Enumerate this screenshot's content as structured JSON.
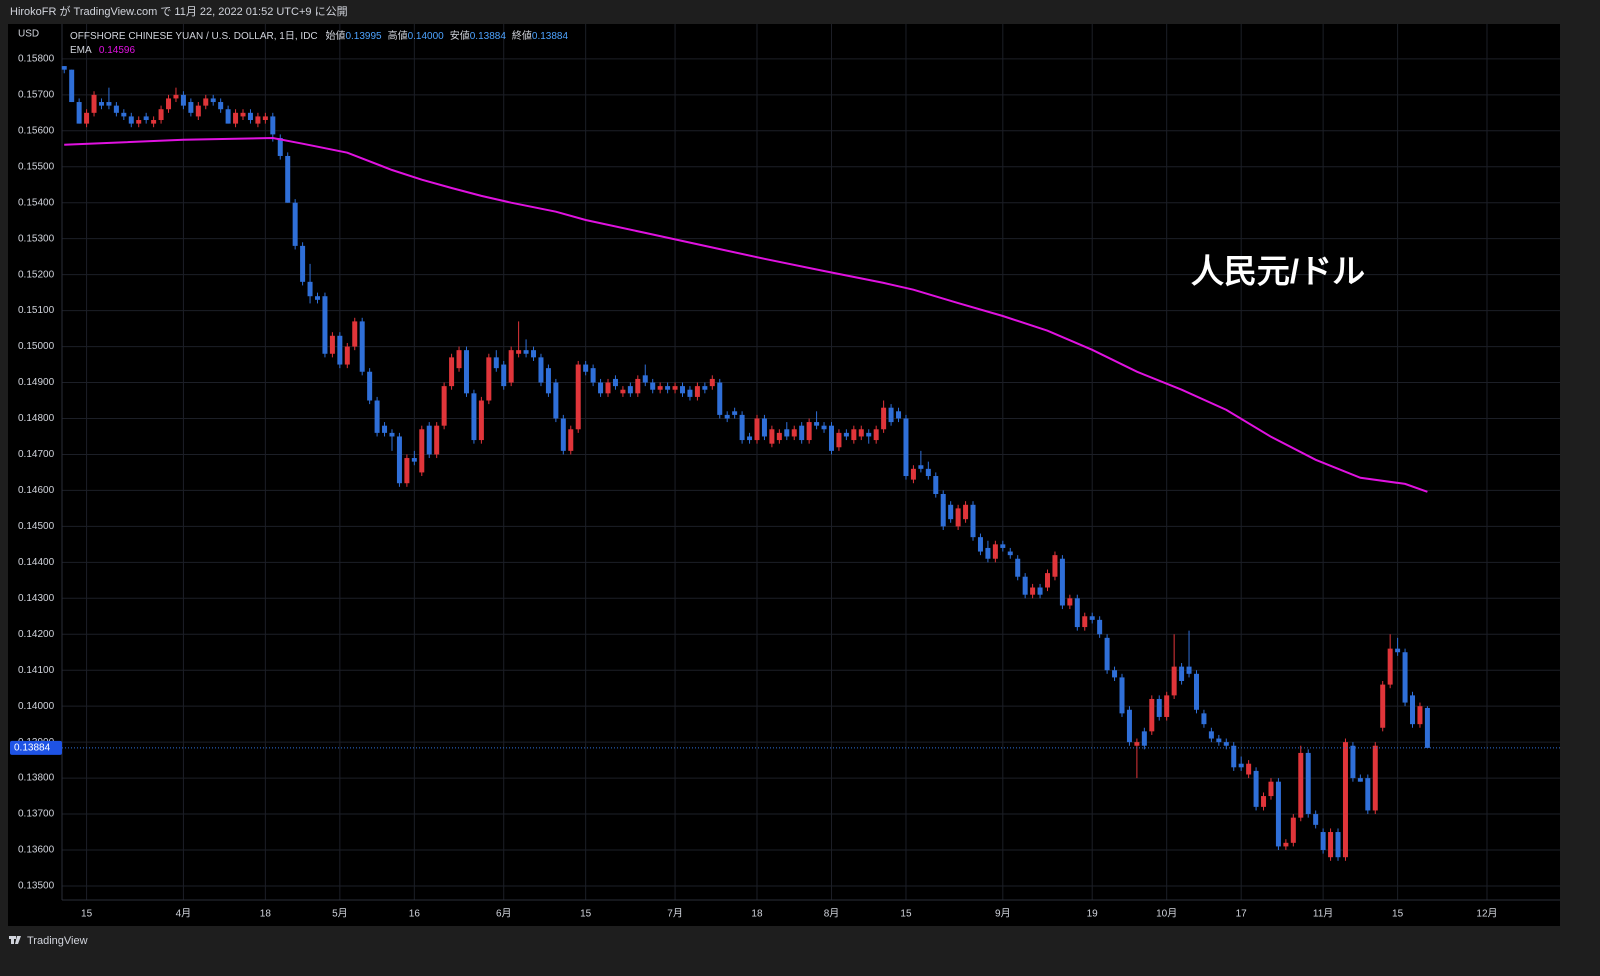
{
  "header": {
    "caption": "HirokoFR が TradingView.com で 11月 22, 2022 01:52 UTC+9 に公開"
  },
  "footer": {
    "brand": "TradingView"
  },
  "chart_data": {
    "type": "candlestick",
    "title": "OFFSHORE CHINESE YUAN / U.S. DOLLAR, 1日, IDC",
    "ohlc_legend": [
      {
        "label": "始値",
        "value": "0.13995"
      },
      {
        "label": "高値",
        "value": "0.14000"
      },
      {
        "label": "安値",
        "value": "0.13884"
      },
      {
        "label": "終値",
        "value": "0.13884"
      }
    ],
    "y_axis_label": "USD",
    "annotation": "人民元/ドル",
    "last_price_label": "0.13884",
    "up_color": "#e0353a",
    "down_color": "#2f6fd8",
    "grid": true,
    "ylim": [
      0.13461,
      0.15897
    ],
    "yticks": [
      {
        "value": 0.135,
        "label": "0.13500"
      },
      {
        "value": 0.136,
        "label": "0.13600"
      },
      {
        "value": 0.137,
        "label": "0.13700"
      },
      {
        "value": 0.138,
        "label": "0.13800"
      },
      {
        "value": 0.139,
        "label": "0.13900"
      },
      {
        "value": 0.14,
        "label": "0.14000"
      },
      {
        "value": 0.141,
        "label": "0.14100"
      },
      {
        "value": 0.142,
        "label": "0.14200"
      },
      {
        "value": 0.143,
        "label": "0.14300"
      },
      {
        "value": 0.144,
        "label": "0.14400"
      },
      {
        "value": 0.145,
        "label": "0.14500"
      },
      {
        "value": 0.146,
        "label": "0.14600"
      },
      {
        "value": 0.147,
        "label": "0.14700"
      },
      {
        "value": 0.148,
        "label": "0.14800"
      },
      {
        "value": 0.149,
        "label": "0.14900"
      },
      {
        "value": 0.15,
        "label": "0.15000"
      },
      {
        "value": 0.151,
        "label": "0.15100"
      },
      {
        "value": 0.152,
        "label": "0.15200"
      },
      {
        "value": 0.153,
        "label": "0.15300"
      },
      {
        "value": 0.154,
        "label": "0.15400"
      },
      {
        "value": 0.155,
        "label": "0.15500"
      },
      {
        "value": 0.156,
        "label": "0.15600"
      },
      {
        "value": 0.157,
        "label": "0.15700"
      },
      {
        "value": 0.158,
        "label": "0.15800"
      }
    ],
    "xlim": [
      -0.3,
      200.8
    ],
    "xticks": [
      {
        "value": 3,
        "label": "15"
      },
      {
        "value": 16,
        "label": "4月"
      },
      {
        "value": 27,
        "label": "18"
      },
      {
        "value": 37,
        "label": "5月"
      },
      {
        "value": 47,
        "label": "16"
      },
      {
        "value": 59,
        "label": "6月"
      },
      {
        "value": 70,
        "label": "15"
      },
      {
        "value": 82,
        "label": "7月"
      },
      {
        "value": 93,
        "label": "18"
      },
      {
        "value": 103,
        "label": "8月"
      },
      {
        "value": 113,
        "label": "15"
      },
      {
        "value": 126,
        "label": "9月"
      },
      {
        "value": 138,
        "label": "19"
      },
      {
        "value": 148,
        "label": "10月"
      },
      {
        "value": 158,
        "label": "17"
      },
      {
        "value": 169,
        "label": "11月"
      },
      {
        "value": 179,
        "label": "15"
      },
      {
        "value": 191,
        "label": "12月"
      }
    ],
    "ohlc": [
      [
        0.1578,
        0.1578,
        0.1576,
        0.1577
      ],
      [
        0.1577,
        0.1577,
        0.1568,
        0.1568
      ],
      [
        0.1568,
        0.1569,
        0.1562,
        0.1562
      ],
      [
        0.1562,
        0.1566,
        0.1561,
        0.1565
      ],
      [
        0.1565,
        0.1571,
        0.1564,
        0.157
      ],
      [
        0.1568,
        0.1569,
        0.1566,
        0.1567
      ],
      [
        0.1568,
        0.1572,
        0.1566,
        0.1567
      ],
      [
        0.1567,
        0.1568,
        0.1564,
        0.1565
      ],
      [
        0.1565,
        0.1566,
        0.1563,
        0.1564
      ],
      [
        0.1564,
        0.1565,
        0.1561,
        0.1562
      ],
      [
        0.1562,
        0.1564,
        0.1561,
        0.1563
      ],
      [
        0.1564,
        0.1565,
        0.1562,
        0.1563
      ],
      [
        0.1562,
        0.1564,
        0.1561,
        0.1563
      ],
      [
        0.1563,
        0.1567,
        0.1562,
        0.1566
      ],
      [
        0.1566,
        0.157,
        0.1565,
        0.1569
      ],
      [
        0.1569,
        0.1572,
        0.1568,
        0.157
      ],
      [
        0.157,
        0.1571,
        0.1566,
        0.1567
      ],
      [
        0.1568,
        0.1569,
        0.1564,
        0.1565
      ],
      [
        0.1564,
        0.1568,
        0.1563,
        0.1567
      ],
      [
        0.1567,
        0.157,
        0.1566,
        0.1569
      ],
      [
        0.1569,
        0.157,
        0.1567,
        0.1568
      ],
      [
        0.1568,
        0.1569,
        0.1565,
        0.1566
      ],
      [
        0.1566,
        0.1567,
        0.1562,
        0.1562
      ],
      [
        0.1562,
        0.1566,
        0.1561,
        0.1565
      ],
      [
        0.1564,
        0.1566,
        0.1563,
        0.1565
      ],
      [
        0.1565,
        0.1566,
        0.1562,
        0.1563
      ],
      [
        0.1562,
        0.1565,
        0.1561,
        0.1564
      ],
      [
        0.1563,
        0.1565,
        0.1562,
        0.1564
      ],
      [
        0.1564,
        0.1565,
        0.1557,
        0.1559
      ],
      [
        0.1558,
        0.1559,
        0.1552,
        0.1553
      ],
      [
        0.1553,
        0.1554,
        0.154,
        0.154
      ],
      [
        0.154,
        0.1541,
        0.1527,
        0.1528
      ],
      [
        0.1528,
        0.1529,
        0.1517,
        0.1518
      ],
      [
        0.1518,
        0.1523,
        0.1512,
        0.1514
      ],
      [
        0.1514,
        0.1515,
        0.1512,
        0.1513
      ],
      [
        0.1514,
        0.1515,
        0.1497,
        0.1498
      ],
      [
        0.1498,
        0.1504,
        0.1497,
        0.1503
      ],
      [
        0.1503,
        0.1504,
        0.1494,
        0.1495
      ],
      [
        0.1495,
        0.1501,
        0.1494,
        0.15
      ],
      [
        0.15,
        0.1508,
        0.1499,
        0.1507
      ],
      [
        0.1507,
        0.1508,
        0.1492,
        0.1493
      ],
      [
        0.1493,
        0.1494,
        0.1484,
        0.1485
      ],
      [
        0.1485,
        0.1486,
        0.1475,
        0.1476
      ],
      [
        0.1478,
        0.1479,
        0.1475,
        0.1476
      ],
      [
        0.1476,
        0.1477,
        0.1471,
        0.1475
      ],
      [
        0.1475,
        0.1476,
        0.1461,
        0.1462
      ],
      [
        0.1462,
        0.147,
        0.1461,
        0.1469
      ],
      [
        0.1469,
        0.1471,
        0.1467,
        0.1468
      ],
      [
        0.1465,
        0.1478,
        0.1464,
        0.1477
      ],
      [
        0.1478,
        0.1479,
        0.1469,
        0.147
      ],
      [
        0.147,
        0.1479,
        0.1469,
        0.1478
      ],
      [
        0.1478,
        0.149,
        0.1477,
        0.1489
      ],
      [
        0.1489,
        0.1498,
        0.1488,
        0.1497
      ],
      [
        0.1494,
        0.15,
        0.1493,
        0.1499
      ],
      [
        0.1499,
        0.15,
        0.1486,
        0.1487
      ],
      [
        0.1487,
        0.1488,
        0.1473,
        0.1474
      ],
      [
        0.1474,
        0.1486,
        0.1473,
        0.1485
      ],
      [
        0.1485,
        0.1498,
        0.1484,
        0.1497
      ],
      [
        0.1497,
        0.1499,
        0.1493,
        0.1494
      ],
      [
        0.1495,
        0.1496,
        0.1488,
        0.1489
      ],
      [
        0.149,
        0.15,
        0.1489,
        0.1499
      ],
      [
        0.1498,
        0.1507,
        0.1497,
        0.1499
      ],
      [
        0.1499,
        0.1502,
        0.1497,
        0.1498
      ],
      [
        0.1499,
        0.15,
        0.1496,
        0.1497
      ],
      [
        0.1497,
        0.1498,
        0.1489,
        0.149
      ],
      [
        0.1494,
        0.1495,
        0.1486,
        0.1487
      ],
      [
        0.149,
        0.1491,
        0.1479,
        0.148
      ],
      [
        0.148,
        0.1481,
        0.147,
        0.1471
      ],
      [
        0.1471,
        0.1478,
        0.147,
        0.1477
      ],
      [
        0.1477,
        0.1496,
        0.1476,
        0.1495
      ],
      [
        0.1495,
        0.1496,
        0.1492,
        0.1493
      ],
      [
        0.1494,
        0.1495,
        0.1489,
        0.149
      ],
      [
        0.149,
        0.1491,
        0.1486,
        0.1487
      ],
      [
        0.1487,
        0.1491,
        0.1486,
        0.149
      ],
      [
        0.1491,
        0.1492,
        0.1488,
        0.1489
      ],
      [
        0.1487,
        0.1489,
        0.1486,
        0.1488
      ],
      [
        0.1489,
        0.149,
        0.1486,
        0.1487
      ],
      [
        0.1487,
        0.1492,
        0.1486,
        0.1491
      ],
      [
        0.1492,
        0.1495,
        0.1489,
        0.149
      ],
      [
        0.149,
        0.1491,
        0.1487,
        0.1488
      ],
      [
        0.1488,
        0.149,
        0.1487,
        0.1489
      ],
      [
        0.1489,
        0.149,
        0.1487,
        0.1488
      ],
      [
        0.1488,
        0.149,
        0.1487,
        0.1489
      ],
      [
        0.1489,
        0.149,
        0.1486,
        0.1487
      ],
      [
        0.1488,
        0.1489,
        0.1485,
        0.1486
      ],
      [
        0.1486,
        0.149,
        0.1485,
        0.1489
      ],
      [
        0.1489,
        0.149,
        0.1487,
        0.1488
      ],
      [
        0.1489,
        0.1492,
        0.1488,
        0.1491
      ],
      [
        0.149,
        0.1491,
        0.148,
        0.1481
      ],
      [
        0.1481,
        0.1482,
        0.1479,
        0.148
      ],
      [
        0.1482,
        0.1483,
        0.148,
        0.1481
      ],
      [
        0.1481,
        0.1482,
        0.1473,
        0.1474
      ],
      [
        0.1475,
        0.1476,
        0.1473,
        0.1474
      ],
      [
        0.1474,
        0.1481,
        0.1473,
        0.148
      ],
      [
        0.148,
        0.1481,
        0.1474,
        0.1475
      ],
      [
        0.1473,
        0.1478,
        0.1472,
        0.1477
      ],
      [
        0.1474,
        0.1477,
        0.1473,
        0.1476
      ],
      [
        0.1477,
        0.1479,
        0.1474,
        0.1475
      ],
      [
        0.1475,
        0.1478,
        0.1474,
        0.1477
      ],
      [
        0.1478,
        0.1479,
        0.1473,
        0.1474
      ],
      [
        0.1474,
        0.148,
        0.1473,
        0.1479
      ],
      [
        0.1479,
        0.1482,
        0.1477,
        0.1478
      ],
      [
        0.1478,
        0.1479,
        0.1476,
        0.1477
      ],
      [
        0.1478,
        0.1479,
        0.147,
        0.1471
      ],
      [
        0.1472,
        0.1477,
        0.1471,
        0.1476
      ],
      [
        0.1476,
        0.1477,
        0.1474,
        0.1475
      ],
      [
        0.1474,
        0.1478,
        0.1473,
        0.1477
      ],
      [
        0.1475,
        0.1478,
        0.1474,
        0.1477
      ],
      [
        0.1476,
        0.1477,
        0.1473,
        0.1475
      ],
      [
        0.1474,
        0.1478,
        0.1473,
        0.1477
      ],
      [
        0.1477,
        0.1485,
        0.1476,
        0.1483
      ],
      [
        0.1483,
        0.1484,
        0.1478,
        0.1479
      ],
      [
        0.1482,
        0.1483,
        0.1479,
        0.148
      ],
      [
        0.148,
        0.1481,
        0.1463,
        0.1464
      ],
      [
        0.1463,
        0.1467,
        0.1462,
        0.1466
      ],
      [
        0.1467,
        0.1471,
        0.1465,
        0.1466
      ],
      [
        0.1466,
        0.1468,
        0.1463,
        0.1464
      ],
      [
        0.1464,
        0.1465,
        0.1458,
        0.1459
      ],
      [
        0.1459,
        0.146,
        0.1449,
        0.145
      ],
      [
        0.1456,
        0.1457,
        0.1451,
        0.1452
      ],
      [
        0.145,
        0.1456,
        0.1449,
        0.1455
      ],
      [
        0.1452,
        0.1457,
        0.1451,
        0.1456
      ],
      [
        0.1456,
        0.1457,
        0.1446,
        0.1447
      ],
      [
        0.1447,
        0.1448,
        0.1442,
        0.1443
      ],
      [
        0.1444,
        0.1446,
        0.144,
        0.1441
      ],
      [
        0.1441,
        0.1446,
        0.144,
        0.1445
      ],
      [
        0.1445,
        0.1446,
        0.1443,
        0.1444
      ],
      [
        0.1443,
        0.1444,
        0.1441,
        0.1442
      ],
      [
        0.1441,
        0.1442,
        0.1435,
        0.1436
      ],
      [
        0.1436,
        0.1437,
        0.143,
        0.1431
      ],
      [
        0.1431,
        0.1434,
        0.143,
        0.1433
      ],
      [
        0.1433,
        0.1434,
        0.143,
        0.1431
      ],
      [
        0.1433,
        0.1438,
        0.1432,
        0.1437
      ],
      [
        0.1436,
        0.1443,
        0.1435,
        0.1442
      ],
      [
        0.1441,
        0.1442,
        0.1427,
        0.1428
      ],
      [
        0.1428,
        0.1431,
        0.1427,
        0.143
      ],
      [
        0.143,
        0.1431,
        0.1421,
        0.1422
      ],
      [
        0.1422,
        0.1426,
        0.1421,
        0.1425
      ],
      [
        0.1425,
        0.1426,
        0.1423,
        0.1424
      ],
      [
        0.1424,
        0.1425,
        0.1419,
        0.142
      ],
      [
        0.1419,
        0.142,
        0.1409,
        0.141
      ],
      [
        0.141,
        0.1411,
        0.1407,
        0.1408
      ],
      [
        0.1408,
        0.1409,
        0.1397,
        0.1398
      ],
      [
        0.1399,
        0.14,
        0.1389,
        0.139
      ],
      [
        0.1389,
        0.1391,
        0.138,
        0.139
      ],
      [
        0.1393,
        0.1394,
        0.1388,
        0.1389
      ],
      [
        0.1393,
        0.1403,
        0.1392,
        0.1402
      ],
      [
        0.1402,
        0.1403,
        0.1396,
        0.1397
      ],
      [
        0.1397,
        0.1404,
        0.1396,
        0.1403
      ],
      [
        0.1403,
        0.142,
        0.1402,
        0.1411
      ],
      [
        0.1411,
        0.1412,
        0.1406,
        0.1407
      ],
      [
        0.1411,
        0.1421,
        0.1408,
        0.1409
      ],
      [
        0.1409,
        0.141,
        0.1398,
        0.1399
      ],
      [
        0.1398,
        0.1399,
        0.1394,
        0.1395
      ],
      [
        0.1393,
        0.1394,
        0.139,
        0.1391
      ],
      [
        0.1391,
        0.1392,
        0.1389,
        0.139
      ],
      [
        0.139,
        0.1391,
        0.1388,
        0.1389
      ],
      [
        0.1389,
        0.139,
        0.1382,
        0.1383
      ],
      [
        0.1384,
        0.1386,
        0.1382,
        0.1383
      ],
      [
        0.1381,
        0.1385,
        0.138,
        0.1384
      ],
      [
        0.1382,
        0.1383,
        0.1371,
        0.1372
      ],
      [
        0.1372,
        0.1376,
        0.1371,
        0.1375
      ],
      [
        0.1375,
        0.138,
        0.1374,
        0.1379
      ],
      [
        0.1379,
        0.138,
        0.136,
        0.1361
      ],
      [
        0.1361,
        0.1363,
        0.136,
        0.1362
      ],
      [
        0.1362,
        0.137,
        0.1361,
        0.1369
      ],
      [
        0.1369,
        0.1389,
        0.1368,
        0.1387
      ],
      [
        0.1387,
        0.1388,
        0.1369,
        0.137
      ],
      [
        0.137,
        0.1371,
        0.1366,
        0.1367
      ],
      [
        0.1365,
        0.1366,
        0.1359,
        0.136
      ],
      [
        0.1358,
        0.1366,
        0.1357,
        0.1365
      ],
      [
        0.1365,
        0.1366,
        0.1357,
        0.1358
      ],
      [
        0.1358,
        0.1391,
        0.1357,
        0.139
      ],
      [
        0.1389,
        0.139,
        0.1379,
        0.138
      ],
      [
        0.138,
        0.1381,
        0.1379,
        0.1379
      ],
      [
        0.138,
        0.1381,
        0.137,
        0.1371
      ],
      [
        0.1371,
        0.139,
        0.137,
        0.1389
      ],
      [
        0.1394,
        0.1407,
        0.1393,
        0.1406
      ],
      [
        0.1406,
        0.142,
        0.1405,
        0.1416
      ],
      [
        0.1416,
        0.1419,
        0.1414,
        0.1415
      ],
      [
        0.1415,
        0.1416,
        0.14,
        0.1401
      ],
      [
        0.1403,
        0.1404,
        0.1394,
        0.1395
      ],
      [
        0.1395,
        0.1401,
        0.1394,
        0.14
      ],
      [
        0.13995,
        0.14,
        0.13884,
        0.13884
      ]
    ],
    "ema": {
      "name": "EMA",
      "color": "#e012e0",
      "x": [
        0,
        16,
        28,
        32,
        38,
        44,
        48,
        52,
        56,
        60,
        66,
        70,
        78,
        86,
        94,
        102,
        110,
        114,
        120,
        126,
        132,
        138,
        144,
        150,
        156,
        162,
        168,
        174,
        180,
        183
      ],
      "values": [
        0.15561,
        0.15575,
        0.1558,
        0.15564,
        0.15539,
        0.15491,
        0.15464,
        0.15441,
        0.15419,
        0.154,
        0.15375,
        0.15352,
        0.15316,
        0.1528,
        0.15244,
        0.1521,
        0.15177,
        0.15158,
        0.15121,
        0.15085,
        0.15044,
        0.14991,
        0.1493,
        0.1488,
        0.14824,
        0.14749,
        0.14685,
        0.14635,
        0.14618,
        0.14596
      ]
    }
  }
}
